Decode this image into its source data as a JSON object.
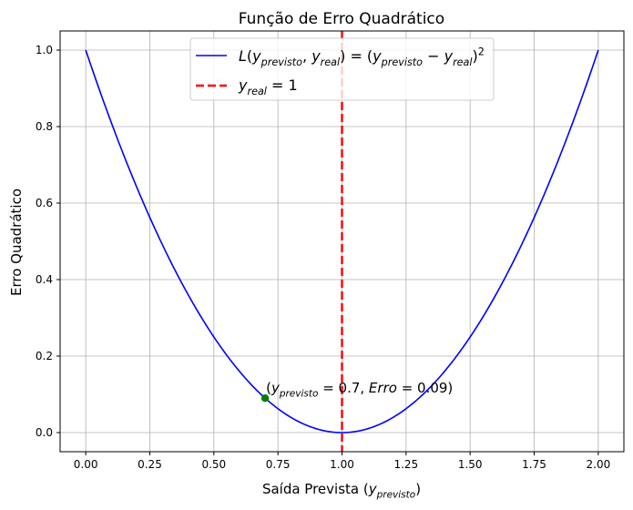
{
  "chart_data": {
    "type": "line",
    "title": "Função de Erro Quadrático",
    "xlabel": [
      {
        "t": "Saída Prevista ("
      },
      {
        "t": "y",
        "i": true
      },
      {
        "t": "previsto",
        "i": true,
        "sub": true
      },
      {
        "t": ")"
      }
    ],
    "ylabel": "Erro Quadrático",
    "xlim": [
      -0.1,
      2.1
    ],
    "ylim": [
      -0.05,
      1.05
    ],
    "grid": true,
    "xticks": [
      "0.00",
      "0.25",
      "0.50",
      "0.75",
      "1.00",
      "1.25",
      "1.50",
      "1.75",
      "2.00"
    ],
    "xtick_values": [
      0,
      0.25,
      0.5,
      0.75,
      1,
      1.25,
      1.5,
      1.75,
      2
    ],
    "yticks": [
      "0.0",
      "0.2",
      "0.4",
      "0.6",
      "0.8",
      "1.0"
    ],
    "ytick_values": [
      0,
      0.2,
      0.4,
      0.6,
      0.8,
      1.0
    ],
    "series": [
      {
        "name": "L(y_previsto, y_real) = (y_previsto − y_real)^2",
        "function": "(x-1)^2",
        "x_range": [
          0,
          2
        ],
        "color": "#0000ff",
        "style": "solid"
      }
    ],
    "vline": {
      "name": "y_real = 1",
      "x": 1,
      "color": "#ff0000",
      "style": "dashed"
    },
    "point": {
      "x": 0.7,
      "y": 0.09,
      "color": "#008000"
    },
    "annotation": [
      {
        "t": "("
      },
      {
        "t": "y",
        "i": true
      },
      {
        "t": "previsto",
        "i": true,
        "sub": true
      },
      {
        "t": " = 0.7, "
      },
      {
        "t": "Erro",
        "i": true
      },
      {
        "t": " = 0.09)"
      }
    ],
    "legend": {
      "placement": "top-center",
      "entries": [
        [
          {
            "t": "L",
            "i": true
          },
          {
            "t": "("
          },
          {
            "t": "y",
            "i": true
          },
          {
            "t": "previsto",
            "i": true,
            "sub": true
          },
          {
            "t": ", "
          },
          {
            "t": "y",
            "i": true
          },
          {
            "t": "real",
            "i": true,
            "sub": true
          },
          {
            "t": ") = ("
          },
          {
            "t": "y",
            "i": true
          },
          {
            "t": "previsto",
            "i": true,
            "sub": true
          },
          {
            "t": " − "
          },
          {
            "t": "y",
            "i": true
          },
          {
            "t": "real",
            "i": true,
            "sub": true
          },
          {
            "t": ")"
          },
          {
            "t": "2",
            "sup": true
          }
        ],
        [
          {
            "t": "y",
            "i": true
          },
          {
            "t": "real",
            "i": true,
            "sub": true
          },
          {
            "t": " = 1"
          }
        ]
      ]
    }
  }
}
